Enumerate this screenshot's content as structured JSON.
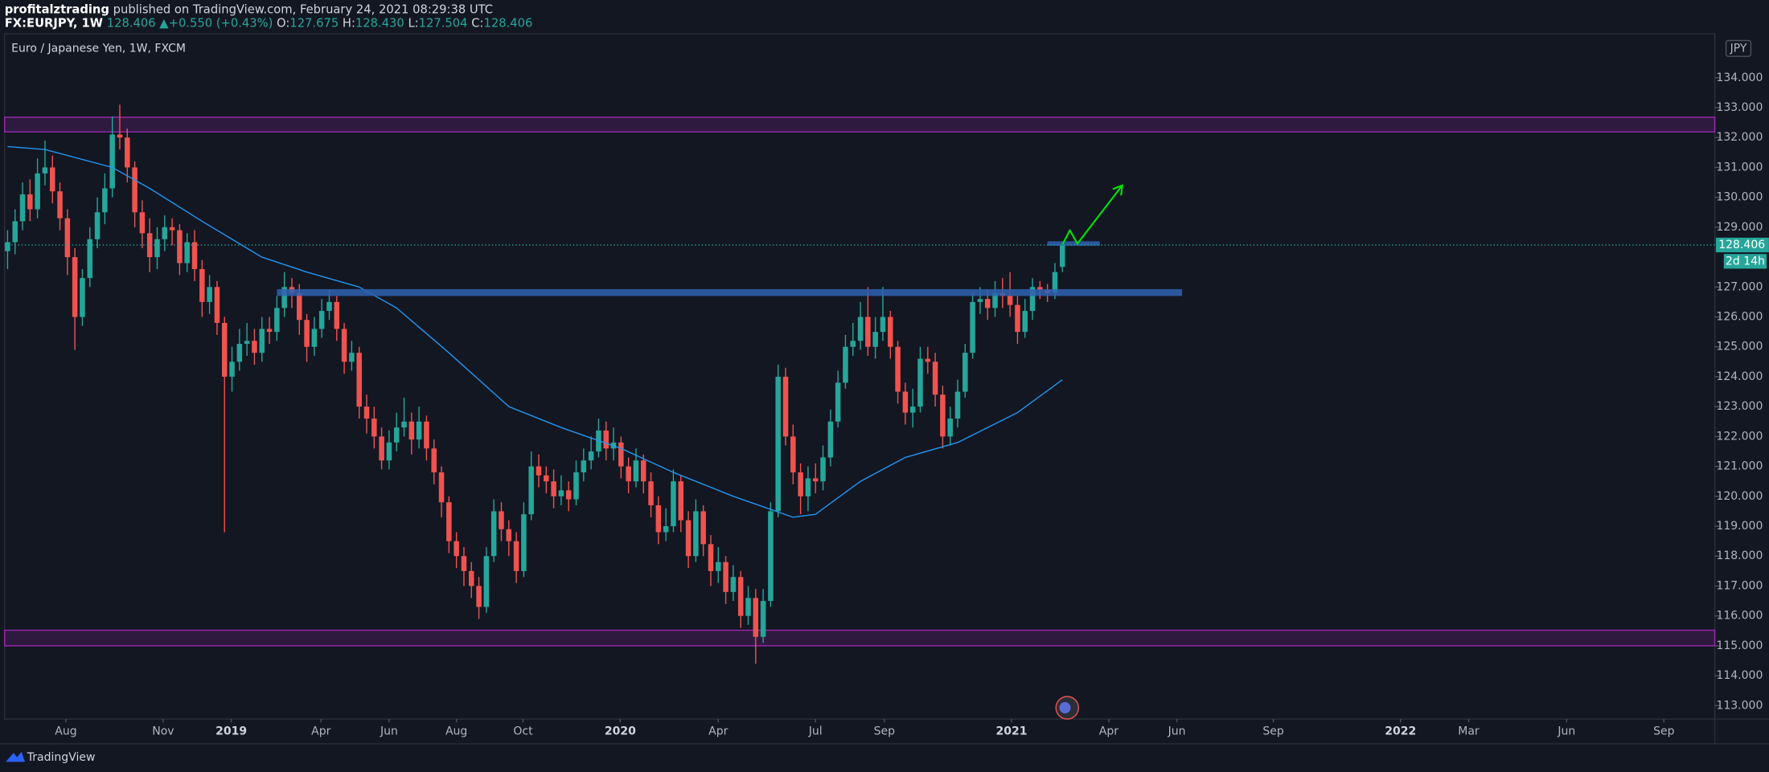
{
  "header": {
    "author": "profitalztrading",
    "published": "published on TradingView.com, February 24, 2021 08:29:38 UTC",
    "symbol": "FX:EURJPY, 1W",
    "last": "128.406",
    "arrow": "▲",
    "change": "+0.550 (+0.43%)",
    "o_label": "O:",
    "o": "127.675",
    "h_label": "H:",
    "h": "128.430",
    "l_label": "L:",
    "l": "127.504",
    "c_label": "C:",
    "c": "128.406"
  },
  "chart_data": {
    "type": "candlestick",
    "title": "Euro / Japanese Yen, 1W, FXCM",
    "currency": "JPY",
    "colors": {
      "up": "#26a69a",
      "down": "#ef5350"
    },
    "open": [
      128.2,
      128.5,
      129.2,
      130.1,
      129.6,
      130.8,
      131.0,
      130.2,
      129.3,
      128.0,
      126.0,
      127.3,
      128.6,
      129.5,
      130.3,
      132.1,
      132.0,
      131.0,
      129.5,
      128.8,
      128.0,
      128.6,
      129.0,
      128.9,
      127.8,
      128.5,
      127.6,
      126.5,
      127.0,
      125.8,
      124.0,
      124.5,
      125.1,
      125.2,
      124.8,
      125.6,
      125.5,
      126.3,
      127.0,
      126.8,
      125.9,
      125.0,
      125.6,
      126.2,
      126.5,
      125.6,
      124.5,
      124.8,
      123.0,
      122.6,
      122.0,
      121.2,
      121.8,
      122.3,
      122.5,
      121.9,
      122.5,
      121.6,
      120.8,
      119.8,
      118.5,
      118.0,
      117.5,
      117.0,
      116.3,
      118.0,
      119.5,
      118.9,
      118.5,
      117.5,
      119.4,
      121.0,
      120.7,
      120.5,
      120.0,
      120.2,
      119.9,
      120.8,
      121.2,
      121.5,
      122.2,
      121.6,
      121.8,
      121.0,
      120.5,
      121.2,
      120.5,
      119.7,
      118.8,
      119.0,
      120.5,
      119.2,
      118.0,
      119.5,
      118.4,
      117.5,
      117.8,
      116.8,
      117.3,
      116.0,
      116.6,
      115.3,
      116.5,
      119.5,
      124.0,
      122.0,
      120.8,
      120.0,
      120.6,
      120.5,
      121.3,
      122.5,
      123.8,
      125.0,
      125.2,
      126.0,
      125.0,
      125.5,
      126.0,
      125.0,
      123.5,
      122.8,
      123.0,
      124.6,
      124.5,
      123.4,
      122.0,
      122.6,
      123.5,
      124.8,
      126.5,
      126.6,
      126.3,
      126.8,
      126.7,
      126.4,
      125.5,
      126.2,
      127.0,
      126.9,
      126.8,
      127.675
    ],
    "high": [
      128.9,
      129.6,
      130.5,
      130.6,
      131.3,
      131.9,
      131.4,
      130.5,
      129.6,
      128.3,
      127.6,
      129.0,
      130.0,
      130.8,
      132.7,
      133.1,
      132.3,
      131.2,
      129.9,
      129.3,
      129.0,
      129.4,
      129.3,
      129.1,
      128.8,
      128.9,
      127.9,
      127.4,
      127.2,
      126.0,
      125.0,
      125.6,
      125.8,
      125.6,
      126.0,
      126.0,
      126.7,
      127.5,
      127.3,
      127.1,
      126.1,
      126.0,
      126.6,
      126.9,
      126.7,
      125.8,
      125.2,
      125.0,
      123.4,
      123.0,
      122.3,
      122.2,
      122.8,
      123.3,
      122.8,
      123.0,
      122.7,
      121.9,
      121.0,
      120.0,
      118.8,
      118.3,
      117.8,
      117.3,
      118.3,
      119.9,
      119.8,
      119.2,
      118.8,
      119.8,
      121.5,
      121.4,
      121.0,
      120.9,
      120.7,
      120.5,
      121.2,
      121.6,
      122.0,
      122.6,
      122.5,
      122.3,
      122.0,
      121.3,
      121.6,
      121.4,
      120.8,
      120.0,
      119.6,
      120.9,
      120.7,
      119.5,
      119.9,
      119.7,
      118.7,
      118.3,
      118.0,
      117.7,
      117.5,
      117.0,
      116.9,
      116.9,
      119.8,
      124.4,
      124.3,
      122.4,
      121.1,
      121.0,
      121.1,
      121.7,
      122.9,
      124.2,
      125.4,
      125.8,
      126.5,
      127.0,
      126.0,
      127.0,
      126.2,
      125.2,
      123.8,
      123.6,
      125.0,
      125.0,
      124.8,
      123.7,
      123.0,
      123.9,
      125.1,
      126.8,
      127.0,
      126.9,
      127.2,
      127.3,
      127.5,
      126.7,
      126.6,
      127.3,
      127.2,
      127.1,
      127.8,
      128.43
    ],
    "low": [
      127.6,
      128.1,
      128.9,
      129.2,
      129.3,
      130.4,
      129.8,
      128.9,
      127.4,
      124.9,
      125.7,
      127.0,
      128.3,
      129.1,
      130.0,
      131.6,
      130.5,
      129.0,
      128.3,
      127.5,
      127.6,
      128.2,
      128.4,
      127.4,
      127.5,
      127.2,
      126.0,
      126.1,
      125.4,
      118.8,
      123.5,
      124.2,
      124.7,
      124.4,
      124.5,
      125.1,
      125.2,
      126.0,
      126.3,
      125.4,
      124.5,
      124.7,
      125.3,
      125.9,
      125.2,
      124.1,
      124.2,
      122.6,
      122.1,
      121.6,
      120.9,
      120.9,
      121.5,
      122.0,
      121.4,
      121.6,
      121.2,
      120.4,
      119.3,
      118.1,
      117.6,
      117.0,
      116.6,
      115.9,
      116.1,
      117.8,
      118.5,
      118.0,
      117.1,
      117.3,
      119.2,
      120.3,
      120.1,
      119.6,
      119.7,
      119.5,
      119.7,
      120.5,
      120.9,
      121.3,
      121.2,
      121.2,
      120.6,
      120.1,
      120.3,
      120.1,
      119.3,
      118.4,
      118.5,
      118.8,
      118.8,
      117.6,
      117.8,
      118.0,
      117.0,
      117.1,
      116.4,
      116.5,
      115.6,
      115.7,
      114.4,
      115.1,
      116.3,
      119.3,
      121.7,
      120.4,
      119.4,
      119.5,
      120.1,
      120.2,
      121.0,
      122.3,
      123.6,
      124.7,
      124.9,
      124.7,
      124.6,
      125.2,
      124.6,
      123.1,
      122.4,
      122.3,
      122.8,
      124.1,
      123.0,
      121.6,
      121.7,
      122.3,
      123.3,
      124.6,
      126.1,
      125.9,
      126.0,
      126.3,
      126.0,
      125.1,
      125.3,
      125.9,
      126.6,
      126.5,
      126.6,
      127.504
    ],
    "close": [
      128.5,
      129.2,
      130.1,
      129.6,
      130.8,
      131.0,
      130.2,
      129.3,
      128.0,
      126.0,
      127.3,
      128.6,
      129.5,
      130.3,
      132.1,
      132.0,
      131.0,
      129.5,
      128.8,
      128.0,
      128.6,
      129.0,
      128.9,
      127.8,
      128.5,
      127.6,
      126.5,
      127.0,
      125.8,
      124.0,
      124.5,
      125.1,
      125.2,
      124.8,
      125.6,
      125.5,
      126.3,
      127.0,
      126.8,
      125.9,
      125.0,
      125.6,
      126.2,
      126.5,
      125.6,
      124.5,
      124.8,
      123.0,
      122.6,
      122.0,
      121.2,
      121.8,
      122.3,
      122.5,
      121.9,
      122.5,
      121.6,
      120.8,
      119.8,
      118.5,
      118.0,
      117.5,
      117.0,
      116.3,
      118.0,
      119.5,
      118.9,
      118.5,
      117.5,
      119.4,
      121.0,
      120.7,
      120.5,
      120.0,
      120.2,
      119.9,
      120.8,
      121.2,
      121.5,
      122.2,
      121.6,
      121.8,
      121.0,
      120.5,
      121.2,
      120.5,
      119.7,
      118.8,
      119.0,
      120.5,
      119.2,
      118.0,
      119.5,
      118.4,
      117.5,
      117.8,
      116.8,
      117.3,
      116.0,
      116.6,
      115.3,
      116.5,
      119.5,
      124.0,
      122.0,
      120.8,
      120.0,
      120.6,
      120.5,
      121.3,
      122.5,
      123.8,
      125.0,
      125.2,
      126.0,
      125.0,
      125.5,
      126.0,
      125.0,
      123.5,
      122.8,
      123.0,
      124.6,
      124.5,
      123.4,
      122.0,
      122.6,
      123.5,
      124.8,
      126.5,
      126.6,
      126.3,
      126.8,
      126.7,
      126.4,
      125.5,
      126.2,
      127.0,
      126.9,
      126.8,
      127.5,
      128.406
    ],
    "ma": {
      "color": "#2196f3",
      "x": [
        0,
        5,
        14,
        19,
        26,
        34,
        40,
        47,
        52,
        59,
        67,
        74,
        82,
        89,
        97,
        105,
        108,
        114,
        120,
        127,
        135,
        141
      ],
      "values": [
        131.7,
        131.6,
        131.0,
        130.3,
        129.2,
        128.0,
        127.5,
        127.0,
        126.3,
        124.8,
        123.0,
        122.3,
        121.6,
        120.8,
        120.0,
        119.3,
        119.4,
        120.5,
        121.3,
        121.8,
        122.8,
        123.9
      ]
    },
    "zones": [
      {
        "low": 132.19,
        "high": 132.68,
        "color": "#9c27b0"
      },
      {
        "low": 115.0,
        "high": 115.52,
        "color": "#9c27b0"
      }
    ],
    "levels": [
      {
        "low": 126.7,
        "high": 126.93,
        "x": [
          36,
          157
        ],
        "color": "#2f62b0"
      },
      {
        "low": 128.38,
        "high": 128.53,
        "x": [
          139,
          146
        ],
        "color": "#2f62b0"
      }
    ],
    "arrow": {
      "color": "#00e600",
      "x": [
        141,
        142,
        143,
        149
      ],
      "values": [
        128.42,
        128.9,
        128.45,
        130.4
      ]
    },
    "last_price": {
      "value": 128.406,
      "countdown": "2d 14h"
    },
    "xlim": [
      -1,
      228.2
    ],
    "xticks": [
      {
        "value": 7.8,
        "label": "Aug"
      },
      {
        "value": 20.8,
        "label": "Nov"
      },
      {
        "value": 29.9,
        "label": "2019"
      },
      {
        "value": 41.9,
        "label": "Apr"
      },
      {
        "value": 51,
        "label": "Jun"
      },
      {
        "value": 60,
        "label": "Aug"
      },
      {
        "value": 68.9,
        "label": "Oct"
      },
      {
        "value": 81.9,
        "label": "2020"
      },
      {
        "value": 95,
        "label": "Apr"
      },
      {
        "value": 108,
        "label": "Jul"
      },
      {
        "value": 117.2,
        "label": "Sep"
      },
      {
        "value": 134.2,
        "label": "2021"
      },
      {
        "value": 147.2,
        "label": "Apr"
      },
      {
        "value": 156.3,
        "label": "Jun"
      },
      {
        "value": 169.2,
        "label": "Sep"
      },
      {
        "value": 186.2,
        "label": "2022"
      },
      {
        "value": 195.3,
        "label": "Mar"
      },
      {
        "value": 208.4,
        "label": "Jun"
      },
      {
        "value": 221.4,
        "label": "Sep"
      }
    ],
    "ylim": [
      112.55,
      135.47
    ],
    "yticks": [
      {
        "value": 113,
        "label": "113.000"
      },
      {
        "value": 114,
        "label": "114.000"
      },
      {
        "value": 115,
        "label": "115.000"
      },
      {
        "value": 116,
        "label": "116.000"
      },
      {
        "value": 117,
        "label": "117.000"
      },
      {
        "value": 118,
        "label": "118.000"
      },
      {
        "value": 119,
        "label": "119.000"
      },
      {
        "value": 120,
        "label": "120.000"
      },
      {
        "value": 121,
        "label": "121.000"
      },
      {
        "value": 122,
        "label": "122.000"
      },
      {
        "value": 123,
        "label": "123.000"
      },
      {
        "value": 124,
        "label": "124.000"
      },
      {
        "value": 125,
        "label": "125.000"
      },
      {
        "value": 126,
        "label": "126.000"
      },
      {
        "value": 127,
        "label": "127.000"
      },
      {
        "value": 129,
        "label": "129.000"
      },
      {
        "value": 130,
        "label": "130.000"
      },
      {
        "value": 131,
        "label": "131.000"
      },
      {
        "value": 132,
        "label": "132.000"
      },
      {
        "value": 133,
        "label": "133.000"
      },
      {
        "value": 134,
        "label": "134.000"
      }
    ]
  },
  "footer": {
    "brand": "TradingView"
  }
}
